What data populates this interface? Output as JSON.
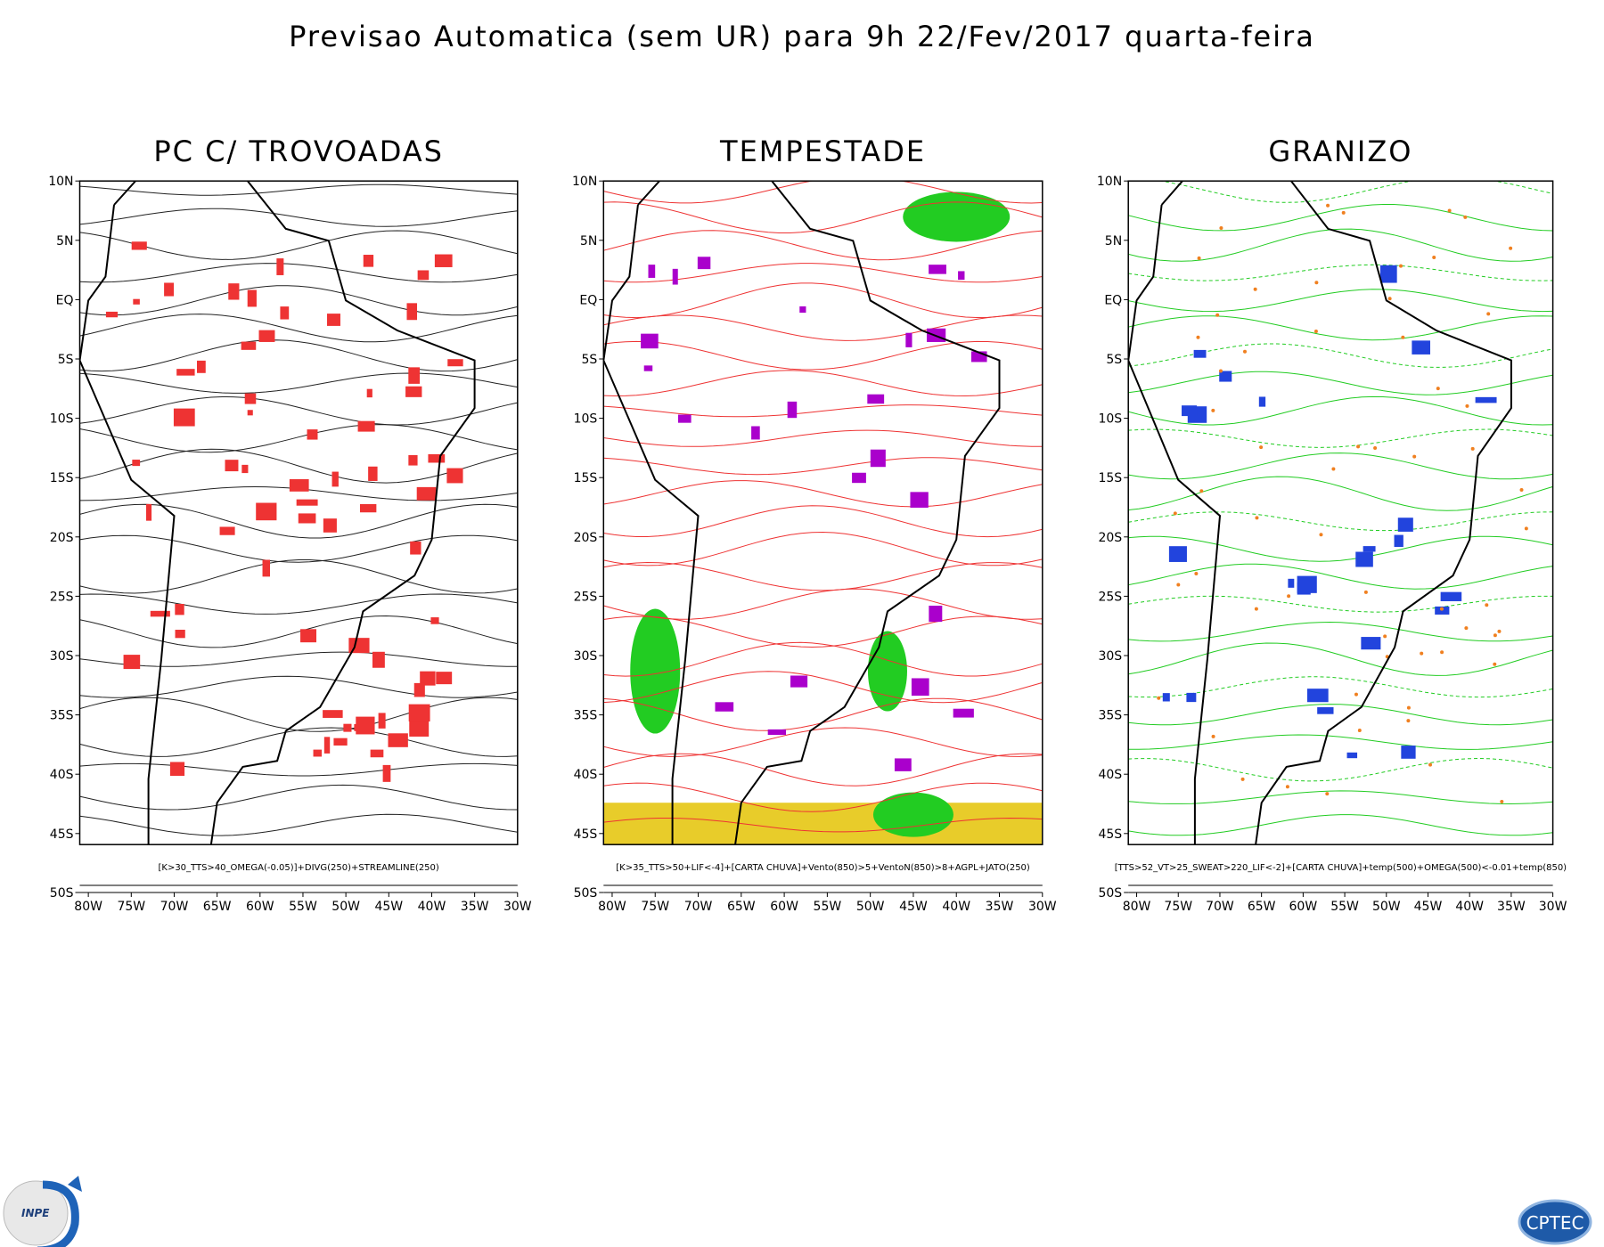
{
  "title": "Previsao Automatica (sem UR) para 9h 22/Fev/2017 quarta-feira",
  "axes": {
    "lat_labels": [
      "10N",
      "5N",
      "EQ",
      "5S",
      "10S",
      "15S",
      "20S",
      "25S",
      "30S",
      "35S",
      "40S",
      "45S",
      "50S"
    ],
    "lon_labels": [
      "80W",
      "75W",
      "70W",
      "65W",
      "60W",
      "55W",
      "50W",
      "45W",
      "40W",
      "35W",
      "30W"
    ]
  },
  "panels": [
    {
      "title": "PC C/ TROVOADAS",
      "caption": "[K>30_TTS>40_OMEGA(-0.05)]+DIVG(250)+STREAMLINE(250)"
    },
    {
      "title": "TEMPESTADE",
      "caption": "[K>35_TTS>50+LIF<-4]+[CARTA CHUVA]+Vento(850)>5+VentoN(850)>8+AGPL+JATO(250)"
    },
    {
      "title": "GRANIZO",
      "caption": "[TTS>52_VT>25_SWEAT>220_LIF<-2]+[CARTA CHUVA]+temp(500)+OMEGA(500)<-0.01+temp(850)"
    }
  ],
  "logos": {
    "left": "INPE",
    "right": "CPTEC"
  }
}
